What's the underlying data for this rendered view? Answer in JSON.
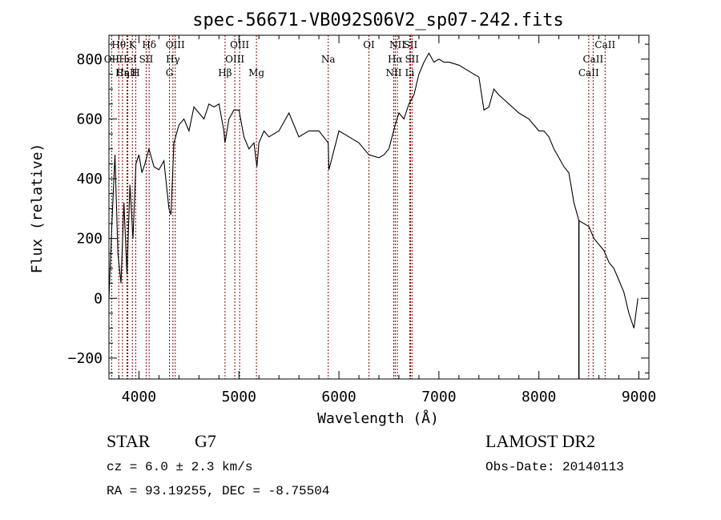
{
  "chart_data": {
    "type": "line",
    "title": "spec-56671-VB092S06V2_sp07-242.fits",
    "xlabel": "Wavelength (Å)",
    "ylabel": "Flux (relative)",
    "xlim": [
      3700,
      9100
    ],
    "ylim": [
      -270,
      880
    ],
    "xticks": [
      4000,
      5000,
      6000,
      7000,
      8000,
      9000
    ],
    "yticks": [
      -200,
      0,
      200,
      400,
      600,
      800
    ],
    "grid": false,
    "line_color": "#000000",
    "marker_color": "#8b0000",
    "series": [
      {
        "x": [
          3700,
          3730,
          3760,
          3790,
          3820,
          3850,
          3880,
          3910,
          3940,
          3970,
          4000,
          4030,
          4060,
          4100,
          4150,
          4200,
          4250,
          4300,
          4320,
          4350,
          4400,
          4450,
          4500,
          4550,
          4600,
          4650,
          4700,
          4750,
          4800,
          4850,
          4860,
          4900,
          4950,
          5000,
          5050,
          5100,
          5150,
          5180,
          5200,
          5250,
          5300,
          5400,
          5500,
          5600,
          5700,
          5800,
          5893,
          5900,
          6000,
          6100,
          6200,
          6300,
          6400,
          6450,
          6500,
          6563,
          6600,
          6650,
          6700,
          6750,
          6800,
          6850,
          6900,
          6950,
          7000,
          7050,
          7100,
          7200,
          7300,
          7400,
          7450,
          7500,
          7550,
          7600,
          7700,
          7800,
          7900,
          8000,
          8050,
          8100,
          8150,
          8200,
          8250,
          8300,
          8350,
          8400,
          8450,
          8500,
          8550,
          8600,
          8650,
          8700,
          8750,
          8800,
          8850,
          8900,
          8950,
          8990
        ],
        "y": [
          0,
          250,
          480,
          150,
          50,
          320,
          80,
          380,
          200,
          450,
          480,
          420,
          450,
          500,
          440,
          430,
          460,
          300,
          280,
          520,
          580,
          600,
          560,
          640,
          620,
          600,
          650,
          640,
          650,
          560,
          520,
          600,
          630,
          630,
          540,
          500,
          520,
          440,
          520,
          560,
          540,
          560,
          620,
          540,
          560,
          560,
          520,
          430,
          560,
          540,
          520,
          480,
          470,
          480,
          500,
          580,
          620,
          600,
          650,
          680,
          750,
          790,
          820,
          790,
          800,
          790,
          790,
          780,
          760,
          740,
          630,
          640,
          700,
          680,
          650,
          620,
          600,
          560,
          560,
          540,
          500,
          470,
          440,
          420,
          320,
          260,
          250,
          240,
          200,
          180,
          160,
          120,
          100,
          60,
          20,
          -50,
          -100,
          0
        ]
      }
    ],
    "line_markers": [
      {
        "label": "Hθ",
        "wavelength": 3798,
        "row": 0
      },
      {
        "label": "OII",
        "wavelength": 3727,
        "row": 1
      },
      {
        "label": "CaII",
        "wavelength": 3880,
        "row": 2
      },
      {
        "label": "Hη",
        "wavelength": 3835,
        "row": 2
      },
      {
        "label": "K",
        "wavelength": 3934,
        "row": 0
      },
      {
        "label": "HeI",
        "wavelength": 3889,
        "row": 1
      },
      {
        "label": "H",
        "wavelength": 3968,
        "row": 2
      },
      {
        "label": "Hδ",
        "wavelength": 4102,
        "row": 0
      },
      {
        "label": "SII",
        "wavelength": 4072,
        "row": 1
      },
      {
        "label": "OIII",
        "wavelength": 4363,
        "row": 0
      },
      {
        "label": "Hγ",
        "wavelength": 4340,
        "row": 1
      },
      {
        "label": "G",
        "wavelength": 4305,
        "row": 2
      },
      {
        "label": "OIII",
        "wavelength": 5007,
        "row": 0
      },
      {
        "label": "OIII",
        "wavelength": 4959,
        "row": 1
      },
      {
        "label": "Hβ",
        "wavelength": 4861,
        "row": 2
      },
      {
        "label": "Mg",
        "wavelength": 5175,
        "row": 2
      },
      {
        "label": "Na",
        "wavelength": 5893,
        "row": 1
      },
      {
        "label": "OI",
        "wavelength": 6300,
        "row": 0
      },
      {
        "label": "NII",
        "wavelength": 6584,
        "row": 0
      },
      {
        "label": "SII",
        "wavelength": 6716,
        "row": 0
      },
      {
        "label": "Hα",
        "wavelength": 6563,
        "row": 1
      },
      {
        "label": "SII",
        "wavelength": 6731,
        "row": 1
      },
      {
        "label": "NII",
        "wavelength": 6548,
        "row": 2
      },
      {
        "label": "Li",
        "wavelength": 6708,
        "row": 2
      },
      {
        "label": "CaII",
        "wavelength": 8662,
        "row": 0
      },
      {
        "label": "CaII",
        "wavelength": 8542,
        "row": 1
      },
      {
        "label": "CaII",
        "wavelength": 8498,
        "row": 2
      }
    ]
  },
  "annotations": {
    "object_class": "STAR",
    "subclass": "G7",
    "redshift_line": "cz = 6.0 ± 2.3 km/s",
    "coords_line": "RA =  93.19255, DEC =  -8.75504",
    "survey": "LAMOST DR2",
    "obs_date": "Obs-Date: 20140113"
  }
}
